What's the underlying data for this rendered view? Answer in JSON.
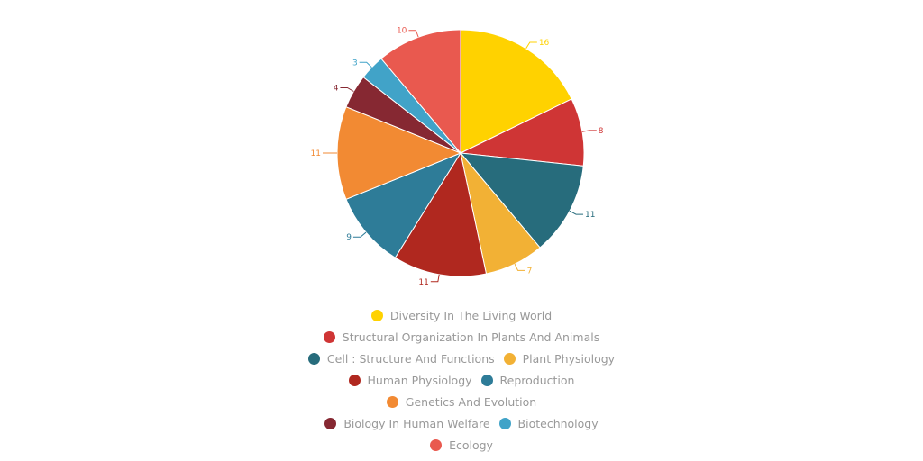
{
  "chart_data": {
    "type": "pie",
    "title": "",
    "categories": [
      "Diversity In The Living World",
      "Structural Organization In Plants And Animals",
      "Cell : Structure And Functions",
      "Plant Physiology",
      "Human Physiology",
      "Reproduction",
      "Genetics And Evolution",
      "Biology In Human Welfare",
      "Biotechnology",
      "Ecology"
    ],
    "values": [
      16,
      8,
      11,
      7,
      11,
      9,
      11,
      4,
      3,
      10
    ],
    "colors": [
      "#ffd200",
      "#cf3535",
      "#276c7c",
      "#f2b135",
      "#b0281f",
      "#2e7c98",
      "#f28a33",
      "#862832",
      "#41a3c8",
      "#e9594f"
    ],
    "data_labels": true,
    "legend_position": "bottom",
    "start_angle_deg": 0,
    "direction": "clockwise"
  },
  "legend_rows": [
    [
      0
    ],
    [
      1
    ],
    [
      2,
      3
    ],
    [
      4,
      5
    ],
    [
      6
    ],
    [
      7,
      8
    ],
    [
      9
    ]
  ]
}
